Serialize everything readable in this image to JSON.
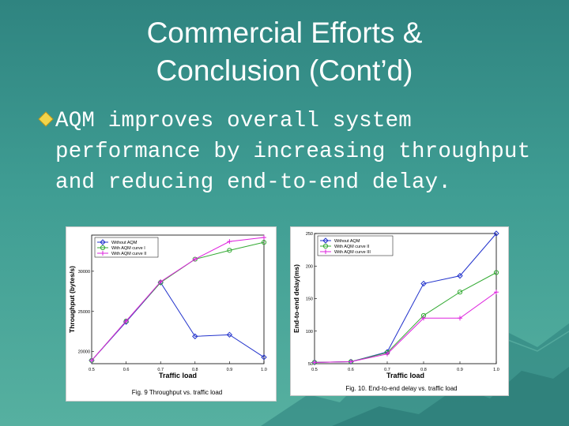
{
  "slide": {
    "title_line1": "Commercial Efforts &",
    "title_line2": "Conclusion (Cont’d)",
    "bullet_icon": "diamond-bullet-icon",
    "bullet_text": "AQM improves overall system performance by increasing throughput and reducing end-to-end delay."
  },
  "colors": {
    "background": "#3a938d",
    "text": "#ffffff",
    "bullet": "#f2d44a",
    "series_blue": "#2233cc",
    "series_green": "#33aa33",
    "series_magenta": "#dd22dd"
  },
  "chart_data": [
    {
      "type": "line",
      "title": "",
      "xlabel": "Traffic load",
      "ylabel": "Throughput (bytes/s)",
      "caption": "Fig. 9 Throughput vs. traffic load",
      "x": [
        0.5,
        0.6,
        0.7,
        0.8,
        0.9,
        1.0
      ],
      "xtick_labels": [
        "0.5",
        "0.6",
        "0.7",
        "0.8",
        "0.9",
        "1.0"
      ],
      "ytick_labels": [
        "20000",
        "25000",
        "30000"
      ],
      "yticks": [
        20000,
        25000,
        30000
      ],
      "ylim": [
        18500,
        34500
      ],
      "xlim": [
        0.5,
        1.0
      ],
      "legend_position": "top-left",
      "series": [
        {
          "name": "Without AQM",
          "color": "#2233cc",
          "marker": "diamond",
          "values": [
            18900,
            23700,
            28600,
            21900,
            22100,
            19300
          ]
        },
        {
          "name": "With AQM curve I",
          "color": "#33aa33",
          "marker": "circle",
          "values": [
            18900,
            23800,
            28600,
            31500,
            32600,
            33600
          ]
        },
        {
          "name": "With AQM curve II",
          "color": "#dd22dd",
          "marker": "plus",
          "values": [
            18900,
            23800,
            28700,
            31500,
            33700,
            34200
          ]
        }
      ]
    },
    {
      "type": "line",
      "title": "",
      "xlabel": "Traffic load",
      "ylabel": "End-to-end delay(ms)",
      "caption": "Fig. 10. End-to-end delay vs. traffic load",
      "x": [
        0.5,
        0.6,
        0.7,
        0.8,
        0.9,
        1.0
      ],
      "xtick_labels": [
        "0.5",
        "0.6",
        "0.7",
        "0.8",
        "0.9",
        "1.0"
      ],
      "ytick_labels": [
        "50",
        "100",
        "150",
        "200",
        "250"
      ],
      "yticks": [
        50,
        100,
        150,
        200,
        250
      ],
      "ylim": [
        50,
        250
      ],
      "xlim": [
        0.5,
        1.0
      ],
      "legend_position": "top-left",
      "series": [
        {
          "name": "Without AQM",
          "color": "#2233cc",
          "marker": "diamond",
          "values": [
            52,
            53,
            68,
            173,
            185,
            250
          ]
        },
        {
          "name": "With AQM curve II",
          "color": "#33aa33",
          "marker": "circle",
          "values": [
            52,
            53,
            67,
            124,
            160,
            190
          ]
        },
        {
          "name": "With AQM curve III",
          "color": "#dd22dd",
          "marker": "plus",
          "values": [
            52,
            53,
            65,
            120,
            120,
            160
          ]
        }
      ]
    }
  ]
}
